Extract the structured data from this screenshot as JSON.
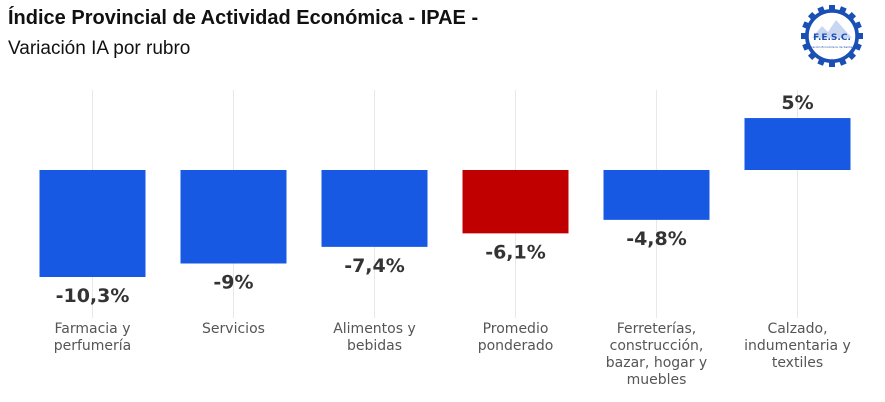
{
  "header": {
    "title": "Índice Provincial de Actividad Económica - IPAE -",
    "subtitle": "Variación IA por rubro"
  },
  "logo": {
    "text": "F.E.S.C.",
    "small_text": "Federación Económica de Santa Cruz",
    "color": "#1a4fb5"
  },
  "chart_data": {
    "type": "bar",
    "categories": [
      [
        "Farmacia y",
        "perfumería"
      ],
      [
        "Servicios"
      ],
      [
        "Alimentos y",
        "bebidas"
      ],
      [
        "Promedio",
        "ponderado"
      ],
      [
        "Ferreterías,",
        "construcción,",
        "bazar, hogar y",
        "muebles"
      ],
      [
        "Calzado,",
        "indumentaria y",
        "textiles"
      ]
    ],
    "values": [
      -10.3,
      -9,
      -7.4,
      -6.1,
      -4.8,
      5
    ],
    "data_labels": [
      "-10,3%",
      "-9%",
      "-7,4%",
      "-6,1%",
      "-4,8%",
      "5%"
    ],
    "colors": [
      "#1759e3",
      "#1759e3",
      "#1759e3",
      "#c00000",
      "#1759e3",
      "#1759e3"
    ],
    "title": "Índice Provincial de Actividad Económica - IPAE -",
    "subtitle": "Variación IA por rubro",
    "xlabel": "",
    "ylabel": "",
    "ylim": [
      -10.3,
      5
    ],
    "grid": "vertical"
  }
}
